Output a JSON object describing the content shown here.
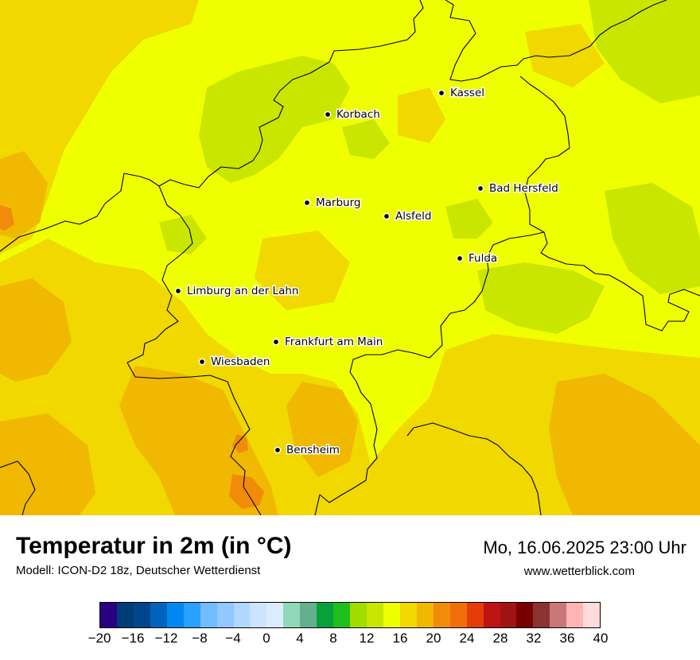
{
  "map": {
    "cities": [
      {
        "name": "Kassel",
        "label": "Kassel"
      },
      {
        "name": "Korbach",
        "label": "Korbach"
      },
      {
        "name": "Bad Hersfeld",
        "label": "Bad Hersfeld"
      },
      {
        "name": "Marburg",
        "label": "Marburg"
      },
      {
        "name": "Alsfeld",
        "label": "Alsfeld"
      },
      {
        "name": "Fulda",
        "label": "Fulda"
      },
      {
        "name": "Limburg an der Lahn",
        "label": "Limburg an der Lahn"
      },
      {
        "name": "Frankfurt am Main",
        "label": "Frankfurt am Main"
      },
      {
        "name": "Wiesbaden",
        "label": "Wiesbaden"
      },
      {
        "name": "Bensheim",
        "label": "Bensheim"
      }
    ],
    "field_colors": {
      "t14": "#c8e600",
      "t16": "#f0ff00",
      "t18": "#f0d800",
      "t20": "#f0b800",
      "t22": "#f08c0a"
    }
  },
  "header": {
    "title": "Temperatur in 2m (in °C)",
    "subtitle": "Modell: ICON-D2 18z, Deutscher Wetterdienst",
    "datetime": "Mo, 16.06.2025 23:00 Uhr",
    "website": "www.wetterblick.com"
  },
  "legend": {
    "min": -20,
    "max": 40,
    "step": 2,
    "unit": "°C",
    "colors": [
      "#2c0082",
      "#003c78",
      "#00468c",
      "#0064be",
      "#0088f0",
      "#2aa0ff",
      "#70bcff",
      "#90c8ff",
      "#b0d8ff",
      "#cce4ff",
      "#dcecff",
      "#90d8b8",
      "#64b08c",
      "#06a03c",
      "#1ebe1e",
      "#a0dc00",
      "#c8e600",
      "#f0ff00",
      "#f0d800",
      "#f0b800",
      "#f08c0a",
      "#f06e0a",
      "#e63c0a",
      "#be1414",
      "#a01414",
      "#780000",
      "#8c3232",
      "#c87878",
      "#ffb4b4",
      "#ffdcdc"
    ],
    "tick_labels": [
      "−20",
      "−16",
      "−12",
      "−8",
      "−4",
      "0",
      "4",
      "8",
      "12",
      "16",
      "20",
      "24",
      "28",
      "32",
      "36",
      "40"
    ]
  }
}
